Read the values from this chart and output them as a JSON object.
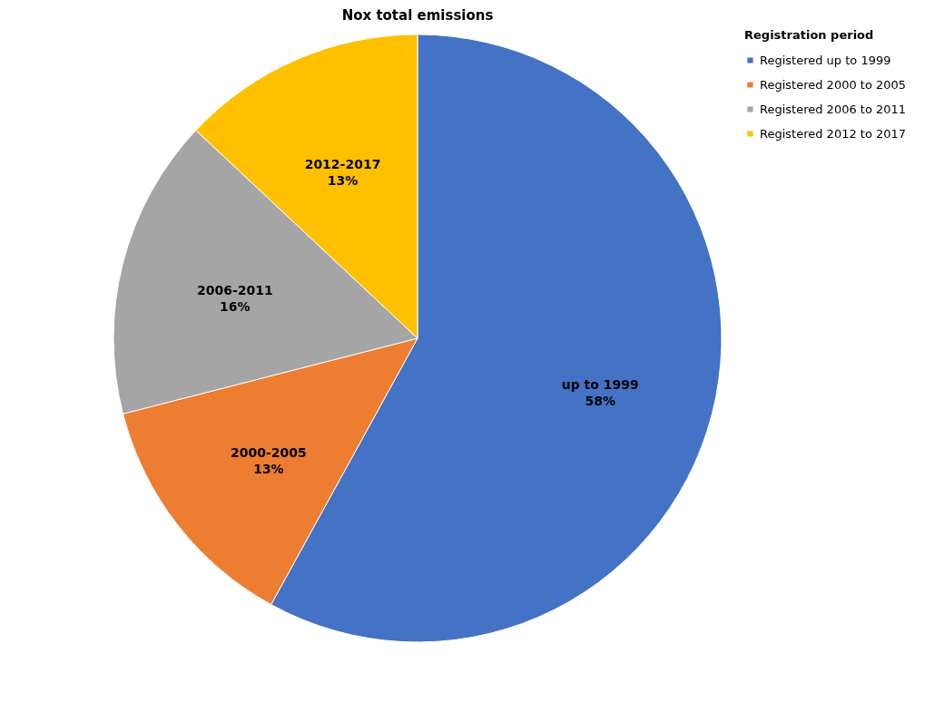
{
  "chart_data": {
    "type": "pie",
    "title": "Nox total emissions",
    "legend_title": "Registration period",
    "categories": [
      "Registered up to 1999",
      "Registered 2000 to 2005",
      "Registered 2006 to 2011",
      "Registered 2012 to 2017"
    ],
    "values": [
      58,
      13,
      16,
      13
    ],
    "colors": [
      "#4472c4",
      "#ed7d31",
      "#a5a5a5",
      "#ffc000"
    ],
    "value_labels": [
      "up to 1999\n58%",
      "2000-2005\n13%",
      "2006-2011\n16%",
      "2012-2017\n13%"
    ],
    "legend": "right"
  }
}
